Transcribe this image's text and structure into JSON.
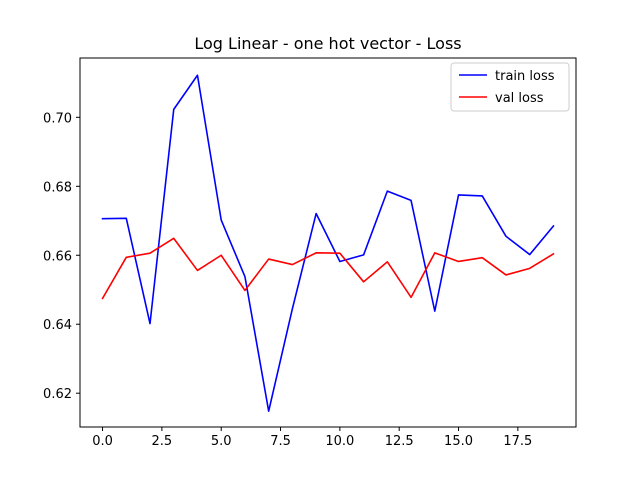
{
  "chart_data": {
    "type": "line",
    "title": "Log Linear - one hot vector - Loss",
    "xlabel": "",
    "ylabel": "",
    "xlim": [
      -0.95,
      19.95
    ],
    "ylim": [
      0.6102,
      0.7172
    ],
    "xticks": [
      0.0,
      2.5,
      5.0,
      7.5,
      10.0,
      12.5,
      15.0,
      17.5
    ],
    "xtick_labels": [
      "0.0",
      "2.5",
      "5.0",
      "7.5",
      "10.0",
      "12.5",
      "15.0",
      "17.5"
    ],
    "yticks": [
      0.62,
      0.64,
      0.66,
      0.68,
      0.7
    ],
    "ytick_labels": [
      "0.62",
      "0.64",
      "0.66",
      "0.68",
      "0.70"
    ],
    "grid": false,
    "legend_position": "top-right",
    "x": [
      0,
      1,
      2,
      3,
      4,
      5,
      6,
      7,
      8,
      9,
      10,
      11,
      12,
      13,
      14,
      15,
      16,
      17,
      18,
      19
    ],
    "series": [
      {
        "name": "train loss",
        "color": "#0000ff",
        "values": [
          0.6706,
          0.6707,
          0.6402,
          0.7023,
          0.7122,
          0.6702,
          0.6538,
          0.6148,
          0.6445,
          0.6721,
          0.6582,
          0.6601,
          0.6786,
          0.6759,
          0.6438,
          0.6775,
          0.6772,
          0.6655,
          0.6602,
          0.6685
        ]
      },
      {
        "name": "val loss",
        "color": "#ff0000",
        "values": [
          0.6475,
          0.6594,
          0.6606,
          0.6649,
          0.6556,
          0.66,
          0.6498,
          0.6589,
          0.6573,
          0.6607,
          0.6606,
          0.6523,
          0.6581,
          0.6478,
          0.6607,
          0.6582,
          0.6593,
          0.6543,
          0.6562,
          0.6604
        ]
      }
    ]
  }
}
